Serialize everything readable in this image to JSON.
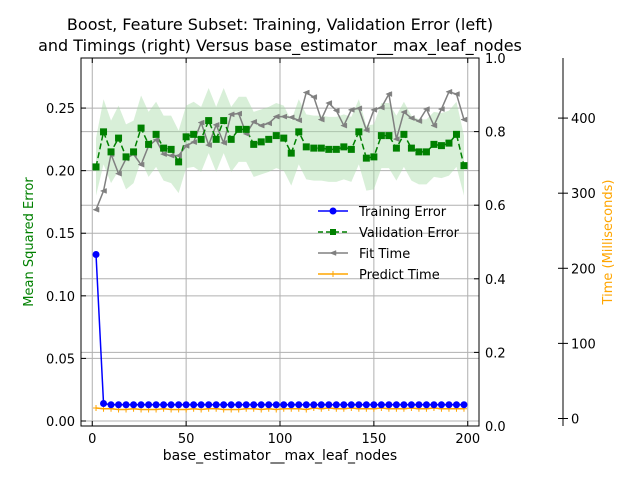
{
  "chart_data": {
    "type": "line",
    "title_lines": [
      "Boost, Feature Subset: Training, Validation Error (left)",
      "and Timings (right) Versus base_estimator__max_leaf_nodes"
    ],
    "xlabel": "base_estimator__max_leaf_nodes",
    "ylabel_left": "Mean Squared Error",
    "ylabel_right_time": "Time (Milliseconds)",
    "xlim": [
      -6,
      206
    ],
    "x_ticks": [
      "0",
      "50",
      "100",
      "150",
      "200"
    ],
    "x_tick_values": [
      0,
      50,
      100,
      150,
      200
    ],
    "ylim_left": [
      -0.004,
      0.29
    ],
    "y_ticks_left": [
      "0.00",
      "0.05",
      "0.10",
      "0.15",
      "0.20",
      "0.25"
    ],
    "y_tick_values_left": [
      0.0,
      0.05,
      0.1,
      0.15,
      0.2,
      0.25
    ],
    "ylim_mid": [
      0.0,
      1.0
    ],
    "y_ticks_mid": [
      "0.0",
      "0.2",
      "0.4",
      "0.6",
      "0.8",
      "1.0"
    ],
    "y_tick_values_mid": [
      0.0,
      0.2,
      0.4,
      0.6,
      0.8,
      1.0
    ],
    "ylim_time": [
      -10,
      480
    ],
    "y_ticks_time": [
      "0",
      "100",
      "200",
      "300",
      "400"
    ],
    "y_tick_values_time": [
      0,
      100,
      200,
      300,
      400
    ],
    "grid": true,
    "legend_position": "center-right",
    "colors": {
      "training": "#0000ff",
      "validation": "#008000",
      "band": "#a8dca8",
      "fit": "#808080",
      "predict": "#ffa500",
      "ylabel_left": "#008000",
      "ylabel_time": "#ffa500",
      "grid": "#b0b0b0"
    },
    "x": [
      2,
      6,
      10,
      14,
      18,
      22,
      26,
      30,
      34,
      38,
      42,
      46,
      50,
      54,
      58,
      62,
      66,
      70,
      74,
      78,
      82,
      86,
      90,
      94,
      98,
      102,
      106,
      110,
      114,
      118,
      122,
      126,
      130,
      134,
      138,
      142,
      146,
      150,
      154,
      158,
      162,
      166,
      170,
      174,
      178,
      182,
      186,
      190,
      194,
      198
    ],
    "series": [
      {
        "name": "Training Error",
        "axis": "left",
        "values": [
          0.133,
          0.014,
          0.013,
          0.013,
          0.013,
          0.013,
          0.013,
          0.013,
          0.013,
          0.013,
          0.013,
          0.013,
          0.013,
          0.013,
          0.013,
          0.013,
          0.013,
          0.013,
          0.013,
          0.013,
          0.013,
          0.013,
          0.013,
          0.013,
          0.013,
          0.013,
          0.013,
          0.013,
          0.013,
          0.013,
          0.013,
          0.013,
          0.013,
          0.013,
          0.013,
          0.013,
          0.013,
          0.013,
          0.013,
          0.013,
          0.013,
          0.013,
          0.013,
          0.013,
          0.013,
          0.013,
          0.013,
          0.013,
          0.013,
          0.013
        ]
      },
      {
        "name": "Validation Error",
        "axis": "left",
        "values": [
          0.203,
          0.231,
          0.215,
          0.226,
          0.211,
          0.215,
          0.234,
          0.221,
          0.229,
          0.218,
          0.217,
          0.207,
          0.227,
          0.229,
          0.225,
          0.24,
          0.225,
          0.24,
          0.225,
          0.233,
          0.233,
          0.221,
          0.223,
          0.225,
          0.228,
          0.226,
          0.214,
          0.231,
          0.219,
          0.218,
          0.218,
          0.217,
          0.217,
          0.219,
          0.217,
          0.231,
          0.21,
          0.211,
          0.228,
          0.228,
          0.218,
          0.229,
          0.218,
          0.215,
          0.215,
          0.221,
          0.22,
          0.222,
          0.229,
          0.204
        ],
        "band_low": [
          0.18,
          0.205,
          0.19,
          0.2,
          0.185,
          0.19,
          0.208,
          0.195,
          0.203,
          0.192,
          0.19,
          0.182,
          0.202,
          0.203,
          0.199,
          0.214,
          0.199,
          0.214,
          0.199,
          0.207,
          0.207,
          0.195,
          0.197,
          0.199,
          0.202,
          0.2,
          0.188,
          0.205,
          0.193,
          0.192,
          0.192,
          0.191,
          0.191,
          0.193,
          0.191,
          0.205,
          0.184,
          0.185,
          0.202,
          0.202,
          0.192,
          0.203,
          0.192,
          0.189,
          0.189,
          0.195,
          0.194,
          0.196,
          0.203,
          0.18
        ],
        "band_high": [
          0.226,
          0.257,
          0.24,
          0.252,
          0.237,
          0.24,
          0.26,
          0.247,
          0.255,
          0.244,
          0.244,
          0.232,
          0.252,
          0.255,
          0.251,
          0.266,
          0.251,
          0.266,
          0.251,
          0.259,
          0.259,
          0.247,
          0.249,
          0.251,
          0.254,
          0.252,
          0.24,
          0.257,
          0.245,
          0.244,
          0.244,
          0.243,
          0.243,
          0.245,
          0.243,
          0.257,
          0.236,
          0.237,
          0.254,
          0.254,
          0.244,
          0.255,
          0.244,
          0.241,
          0.241,
          0.247,
          0.246,
          0.248,
          0.255,
          0.228
        ]
      },
      {
        "name": "Fit Time",
        "axis": "time",
        "values": [
          278,
          303,
          352,
          326,
          346,
          352,
          338,
          363,
          371,
          352,
          350,
          350,
          363,
          368,
          394,
          364,
          391,
          367,
          405,
          406,
          379,
          395,
          390,
          393,
          402,
          402,
          401,
          397,
          434,
          428,
          398,
          420,
          410,
          390,
          411,
          413,
          384,
          411,
          414,
          432,
          372,
          408,
          400,
          396,
          412,
          390,
          412,
          435,
          432,
          398
        ]
      },
      {
        "name": "Predict Time",
        "axis": "time",
        "values": [
          14,
          13,
          13,
          12,
          12,
          13,
          12,
          12,
          12,
          13,
          12,
          12,
          12,
          13,
          12,
          13,
          13,
          12,
          12,
          12,
          13,
          13,
          12,
          13,
          12,
          13,
          13,
          13,
          12,
          14,
          13,
          14,
          13,
          13,
          14,
          13,
          13,
          13,
          14,
          13,
          13,
          13,
          14,
          13,
          13,
          14,
          13,
          13,
          13,
          13
        ]
      }
    ],
    "legend_labels": [
      "Training Error",
      "Validation Error",
      "Fit Time",
      "Predict Time"
    ]
  }
}
